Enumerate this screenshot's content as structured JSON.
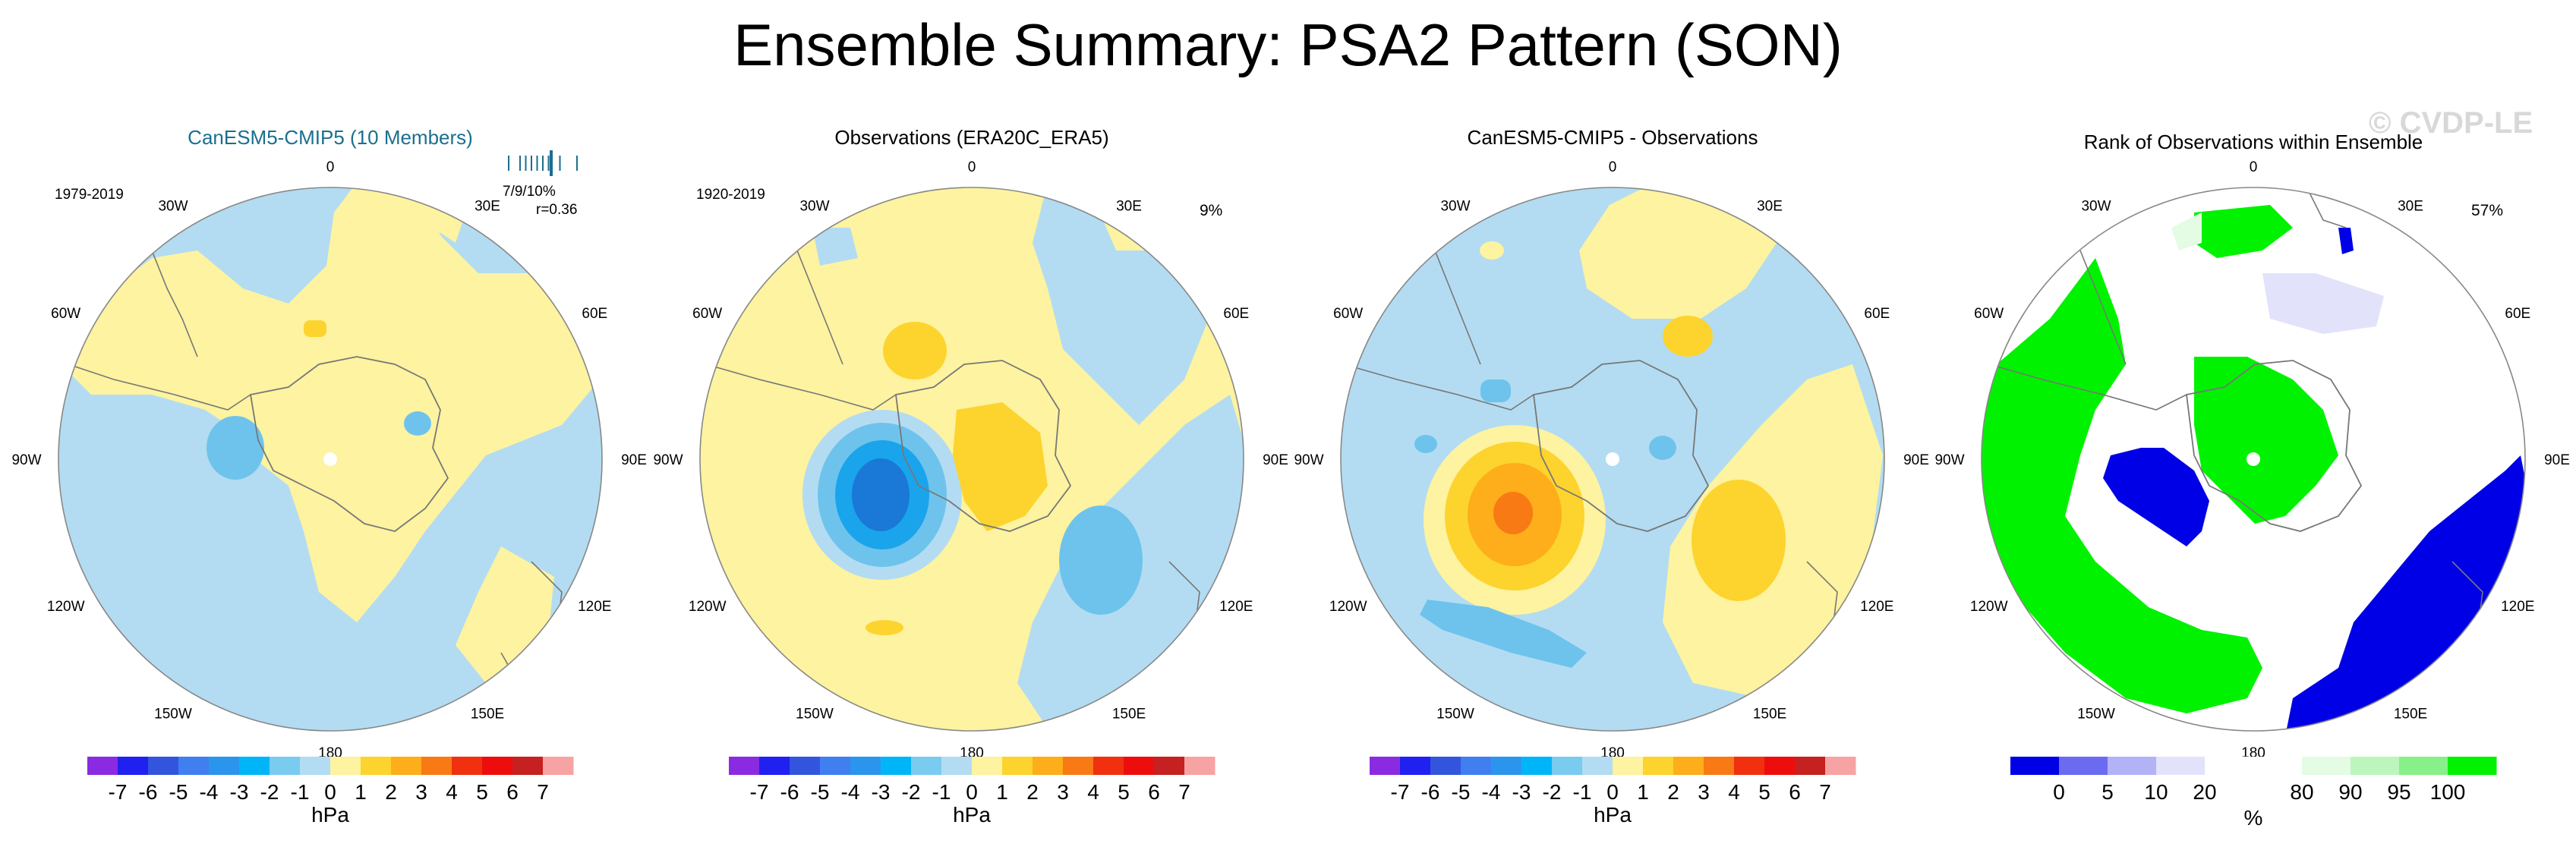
{
  "page": {
    "title": "Ensemble Summary: PSA2 Pattern (SON)",
    "watermark": "© CVDP-LE"
  },
  "colors": {
    "ocean_light_blue": "#b3dcf2",
    "pale_yellow": "#fdf3a0",
    "mid_blue": "#6ec3ec",
    "bright_blue": "#1aa4ec",
    "deep_blue": "#1a78d6",
    "gold": "#fdd32e",
    "orange": "#fdae1a",
    "dark_orange": "#f87a14",
    "rank_green": "#00f200",
    "rank_blue": "#0000e6",
    "rank_lavender": "#e2e2fb",
    "rank_mint": "#e4fbe4"
  },
  "chart_data": [
    {
      "type": "map",
      "title": "CanESM5-CMIP5 (10 Members)",
      "title_color": "#1a6f8f",
      "period": "1979-2019",
      "stat_text": "7/9/10%",
      "r_text": "r=0.36",
      "rug_values": [
        -3,
        -2,
        -1.5,
        -1,
        -0.5,
        0,
        0.5,
        1.5,
        3
      ],
      "lon_labels": [
        "0",
        "30E",
        "60E",
        "90E",
        "120E",
        "150E",
        "180",
        "150W",
        "120W",
        "90W",
        "60W",
        "30W"
      ]
    },
    {
      "type": "map",
      "title": "Observations (ERA20C_ERA5)",
      "period": "1920-2019",
      "pct_text": "9%",
      "lon_labels": [
        "0",
        "30E",
        "60E",
        "90E",
        "120E",
        "150E",
        "180",
        "150W",
        "120W",
        "90W",
        "60W",
        "30W"
      ]
    },
    {
      "type": "map",
      "title": "CanESM5-CMIP5 - Observations",
      "lon_labels": [
        "0",
        "30E",
        "60E",
        "90E",
        "120E",
        "150E",
        "180",
        "150W",
        "120W",
        "90W",
        "60W",
        "30W"
      ]
    },
    {
      "type": "map",
      "title": "Rank of Observations within Ensemble",
      "pct_text": "57%",
      "lon_labels": [
        "0",
        "30E",
        "60E",
        "90E",
        "120E",
        "150E",
        "180",
        "150W",
        "120W",
        "90W",
        "60W",
        "30W"
      ]
    }
  ],
  "colorbar_hpa": {
    "colors": [
      "#8a2be2",
      "#2020f0",
      "#3355dd",
      "#3f7ff0",
      "#2b95ee",
      "#00b5f7",
      "#79cbf0",
      "#b3dcf2",
      "#fdf3a0",
      "#fdd32e",
      "#fdae1a",
      "#f87a14",
      "#f0300f",
      "#ee0d0d",
      "#c62020",
      "#f7a3a3"
    ],
    "labels": [
      "-7",
      "-6",
      "-5",
      "-4",
      "-3",
      "-2",
      "-1",
      "0",
      "1",
      "2",
      "3",
      "4",
      "5",
      "6",
      "7"
    ],
    "unit": "hPa"
  },
  "colorbar_rank": {
    "colors": [
      "#0000e6",
      "#6b6bf2",
      "#b2b2f7",
      "#e2e2fb",
      "#ffffff",
      "#ffffff",
      "#e4fbe4",
      "#bcf6bc",
      "#88f088",
      "#00f200"
    ],
    "labels": [
      "0",
      "5",
      "10",
      "20",
      "80",
      "90",
      "95",
      "100"
    ],
    "label_positions": [
      1,
      2,
      3,
      4,
      6,
      7,
      8,
      9
    ],
    "unit": "%"
  }
}
